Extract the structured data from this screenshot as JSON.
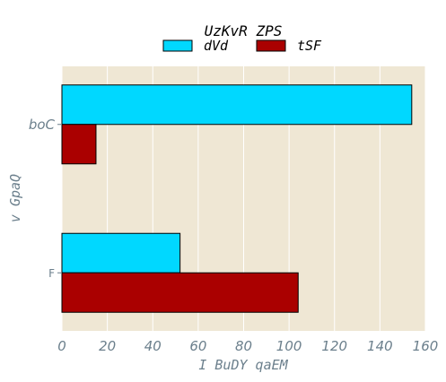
{
  "chart_data": {
    "type": "bar",
    "orientation": "horizontal",
    "title": "UzKvR ZPS",
    "xlabel": "I BuDY qaEM",
    "ylabel": "v GpaQ",
    "categories": [
      "boC",
      "F"
    ],
    "series": [
      {
        "name": "dVd",
        "values": [
          154,
          52
        ],
        "color": "#00d8ff"
      },
      {
        "name": "tSF",
        "values": [
          15,
          104
        ],
        "color": "#aa0000"
      }
    ],
    "xlim": [
      0,
      160
    ],
    "xticks": [
      "0",
      "20",
      "40",
      "60",
      "80",
      "100",
      "120",
      "140",
      "160"
    ],
    "grid": true,
    "legend_position": "top-center",
    "colors": {
      "plot_background": "#efe7d4",
      "grid": "#ffffff",
      "text": "#6b7f8c",
      "bar_edge": "#000000"
    }
  }
}
